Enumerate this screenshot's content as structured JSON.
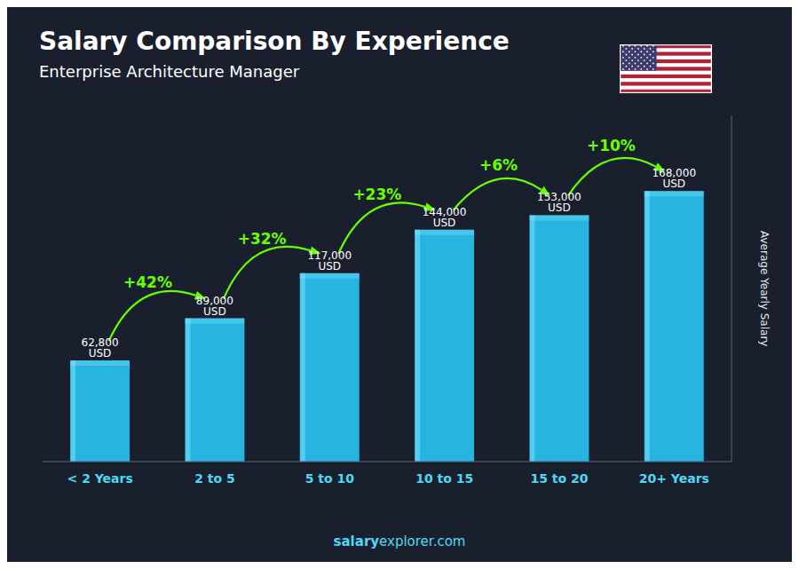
{
  "chart_data": {
    "type": "bar",
    "title": "Salary Comparison By Experience",
    "subtitle": "Enterprise Architecture Manager",
    "categories": [
      "< 2 Years",
      "2 to 5",
      "5 to 10",
      "10 to 15",
      "15 to 20",
      "20+ Years"
    ],
    "values": [
      62800,
      89000,
      117000,
      144000,
      153000,
      168000
    ],
    "value_labels": [
      "62,800 USD",
      "89,000 USD",
      "117,000 USD",
      "144,000 USD",
      "153,000 USD",
      "168,000 USD"
    ],
    "data_labels": true,
    "color": "#29c4f5",
    "ylim": [
      0,
      215000
    ],
    "tick_labels": "x",
    "grid": false,
    "ylabel": "Average Yearly Salary",
    "annotations": [
      {
        "text": "+42%",
        "from": "< 2 Years",
        "to": "2 to 5"
      },
      {
        "text": "+32%",
        "from": "2 to 5",
        "to": "5 to 10"
      },
      {
        "text": "+23%",
        "from": "5 to 10",
        "to": "10 to 15"
      },
      {
        "text": "+6%",
        "from": "10 to 15",
        "to": "15 to 20"
      },
      {
        "text": "+10%",
        "from": "15 to 20",
        "to": "20+ Years"
      }
    ],
    "footer": [
      "salary",
      "explorer.com"
    ]
  }
}
